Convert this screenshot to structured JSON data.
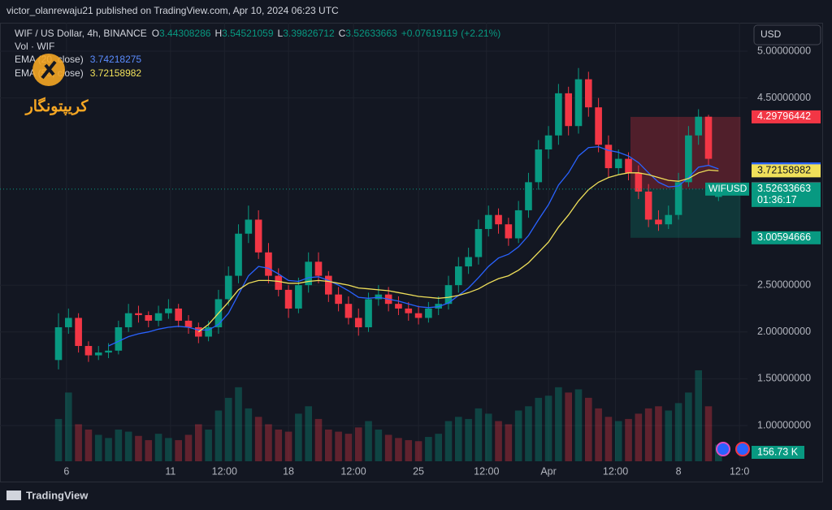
{
  "header": {
    "published": "victor_olanrewaju21 published on TradingView.com, Apr 10, 2024 06:23 UTC",
    "symbol": "WIF / US Dollar, 4h, BINANCE",
    "o": "O",
    "h": "H",
    "l": "L",
    "c": "C",
    "change": "+0.07619119",
    "change_pct": "(+2.21%)",
    "vol": "Vol · WIF",
    "watermark": "کریپتونگار",
    "currency": "USD",
    "brand": "TradingView"
  },
  "chart_data": {
    "type": "candlestick",
    "x": [
      0,
      1,
      2,
      3,
      4,
      5,
      6,
      7,
      8,
      9,
      10,
      11,
      12,
      13,
      14,
      15,
      16,
      17,
      18,
      19,
      20,
      21,
      22,
      23,
      24,
      25,
      26,
      27,
      28,
      29,
      30,
      31,
      32,
      33,
      34,
      35,
      36,
      37,
      38,
      39,
      40,
      41,
      42,
      43,
      44,
      45,
      46,
      47,
      48,
      49,
      50,
      51,
      52,
      53,
      54,
      55,
      56,
      57,
      58,
      59,
      60,
      61,
      62,
      63,
      64,
      65,
      66
    ],
    "xlim": [
      -5.85,
      68.9
    ],
    "xticks": [
      {
        "value": 0.8,
        "label": "6"
      },
      {
        "value": 11.2,
        "label": "11"
      },
      {
        "value": 16.6,
        "label": "12:00"
      },
      {
        "value": 23.0,
        "label": "18"
      },
      {
        "value": 29.5,
        "label": "12:00"
      },
      {
        "value": 36.0,
        "label": "25"
      },
      {
        "value": 42.8,
        "label": "12:00"
      },
      {
        "value": 49.0,
        "label": "Apr"
      },
      {
        "value": 55.7,
        "label": "12:00"
      },
      {
        "value": 62.0,
        "label": "8"
      },
      {
        "value": 68.1,
        "label": "12:0"
      }
    ],
    "ylim": [
      0.618,
      5.304
    ],
    "yticks": [
      {
        "value": 1,
        "label": "1.00000000"
      },
      {
        "value": 1.5,
        "label": "1.50000000"
      },
      {
        "value": 2,
        "label": "2.00000000"
      },
      {
        "value": 2.5,
        "label": "2.50000000"
      },
      {
        "value": 4.5,
        "label": "4.50000000"
      },
      {
        "value": 5,
        "label": "5.00000000"
      }
    ],
    "grid": true,
    "series": [
      {
        "name": "WIFUSD",
        "up_color": "#089981",
        "down_color": "#f23645",
        "open": [
          1.7,
          2.05,
          2.15,
          1.85,
          1.75,
          1.78,
          1.8,
          2.05,
          2.2,
          2.18,
          2.12,
          2.2,
          2.25,
          2.12,
          2.05,
          1.95,
          2.05,
          2.35,
          2.6,
          3.05,
          3.2,
          2.85,
          2.6,
          2.45,
          2.25,
          2.5,
          2.75,
          2.6,
          2.4,
          2.3,
          2.15,
          2.05,
          2.35,
          2.4,
          2.3,
          2.25,
          2.2,
          2.15,
          2.25,
          2.3,
          2.5,
          2.7,
          2.8,
          3.1,
          3.25,
          3.15,
          3.0,
          3.3,
          3.6,
          3.95,
          4.1,
          4.55,
          4.2,
          4.7,
          4.4,
          4.0,
          3.75,
          3.85,
          3.7,
          3.5,
          3.2,
          3.15,
          3.25,
          3.6,
          4.1,
          4.3,
          3.44308286
        ],
        "high": [
          2.2,
          2.25,
          2.2,
          1.9,
          1.85,
          1.88,
          2.12,
          2.3,
          2.28,
          2.22,
          2.28,
          2.35,
          2.3,
          2.18,
          2.1,
          2.12,
          2.45,
          2.7,
          3.15,
          3.35,
          3.3,
          2.95,
          2.68,
          2.5,
          2.58,
          2.85,
          2.85,
          2.65,
          2.48,
          2.38,
          2.25,
          2.42,
          2.5,
          2.48,
          2.38,
          2.32,
          2.28,
          2.32,
          2.38,
          2.6,
          2.8,
          2.9,
          3.2,
          3.35,
          3.32,
          3.22,
          3.4,
          3.7,
          4.05,
          4.2,
          4.65,
          4.62,
          4.82,
          4.78,
          4.5,
          4.1,
          3.95,
          3.92,
          3.78,
          3.58,
          3.3,
          3.35,
          3.7,
          4.2,
          4.38,
          4.32,
          3.54521059
        ],
        "low": [
          1.6,
          1.98,
          1.78,
          1.68,
          1.7,
          1.72,
          1.76,
          2.0,
          2.1,
          2.05,
          2.06,
          2.14,
          2.05,
          1.98,
          1.88,
          1.9,
          1.98,
          2.28,
          2.52,
          2.95,
          2.78,
          2.52,
          2.38,
          2.15,
          2.2,
          2.42,
          2.52,
          2.32,
          2.22,
          2.08,
          1.96,
          2.0,
          2.28,
          2.22,
          2.18,
          2.12,
          2.08,
          2.1,
          2.18,
          2.24,
          2.42,
          2.62,
          2.72,
          3.02,
          3.05,
          2.92,
          2.95,
          3.22,
          3.52,
          3.85,
          4.0,
          4.1,
          4.12,
          4.3,
          3.92,
          3.65,
          3.68,
          3.62,
          3.42,
          3.12,
          3.08,
          3.1,
          3.2,
          3.55,
          4.0,
          3.78,
          3.39826712
        ],
        "close": [
          2.05,
          2.15,
          1.85,
          1.75,
          1.78,
          1.8,
          2.05,
          2.2,
          2.18,
          2.12,
          2.2,
          2.25,
          2.12,
          2.05,
          1.95,
          2.05,
          2.35,
          2.6,
          3.05,
          3.2,
          2.85,
          2.6,
          2.45,
          2.25,
          2.5,
          2.75,
          2.6,
          2.4,
          2.3,
          2.15,
          2.05,
          2.35,
          2.4,
          2.3,
          2.25,
          2.2,
          2.15,
          2.25,
          2.3,
          2.5,
          2.7,
          2.8,
          3.1,
          3.25,
          3.15,
          3.0,
          3.3,
          3.6,
          3.95,
          4.1,
          4.55,
          4.2,
          4.7,
          4.4,
          4.0,
          3.75,
          3.85,
          3.7,
          3.5,
          3.2,
          3.15,
          3.25,
          3.6,
          4.1,
          4.3,
          3.85,
          3.52633663
        ],
        "volume": [
          400,
          650,
          350,
          300,
          250,
          220,
          300,
          280,
          240,
          200,
          260,
          220,
          200,
          250,
          350,
          300,
          480,
          600,
          700,
          500,
          420,
          350,
          300,
          280,
          450,
          520,
          400,
          300,
          280,
          260,
          320,
          380,
          300,
          250,
          220,
          200,
          190,
          230,
          260,
          380,
          420,
          400,
          500,
          450,
          380,
          350,
          480,
          520,
          600,
          620,
          700,
          650,
          680,
          600,
          500,
          420,
          380,
          400,
          450,
          500,
          520,
          480,
          550,
          650,
          860,
          520,
          156.73
        ],
        "volume_label": "156.73 K",
        "countdown": "01:36:17"
      },
      {
        "name": "EMA (20, close)",
        "color": "#2962ff",
        "values": [
          null,
          null,
          null,
          null,
          null,
          1.85,
          1.9,
          1.95,
          1.98,
          2.0,
          2.03,
          2.05,
          2.06,
          2.05,
          2.02,
          2.02,
          2.08,
          2.2,
          2.4,
          2.6,
          2.7,
          2.68,
          2.62,
          2.55,
          2.54,
          2.58,
          2.59,
          2.55,
          2.5,
          2.44,
          2.37,
          2.36,
          2.37,
          2.35,
          2.33,
          2.3,
          2.27,
          2.26,
          2.27,
          2.31,
          2.39,
          2.47,
          2.58,
          2.7,
          2.79,
          2.83,
          2.91,
          3.03,
          3.2,
          3.36,
          3.57,
          3.7,
          3.88,
          3.97,
          3.98,
          3.94,
          3.92,
          3.88,
          3.81,
          3.7,
          3.6,
          3.55,
          3.56,
          3.65,
          3.76,
          3.78,
          3.74218275
        ]
      },
      {
        "name": "EMA (50, close)",
        "color": "#f0e05a",
        "values": [
          null,
          null,
          null,
          null,
          null,
          null,
          null,
          null,
          null,
          null,
          null,
          null,
          null,
          null,
          2.0,
          2.08,
          2.2,
          2.32,
          2.45,
          2.52,
          2.55,
          2.55,
          2.54,
          2.52,
          2.52,
          2.54,
          2.55,
          2.54,
          2.52,
          2.5,
          2.47,
          2.46,
          2.45,
          2.44,
          2.42,
          2.4,
          2.38,
          2.37,
          2.36,
          2.37,
          2.39,
          2.42,
          2.46,
          2.52,
          2.57,
          2.6,
          2.66,
          2.74,
          2.85,
          2.96,
          3.12,
          3.25,
          3.4,
          3.52,
          3.6,
          3.65,
          3.68,
          3.7,
          3.7,
          3.68,
          3.65,
          3.62,
          3.61,
          3.64,
          3.7,
          3.73,
          3.72158982
        ]
      }
    ],
    "position": {
      "start": 57.2,
      "end": 68.2,
      "entry": 3.52956417,
      "stop": 4.29796442,
      "target": 3.00594666
    }
  }
}
